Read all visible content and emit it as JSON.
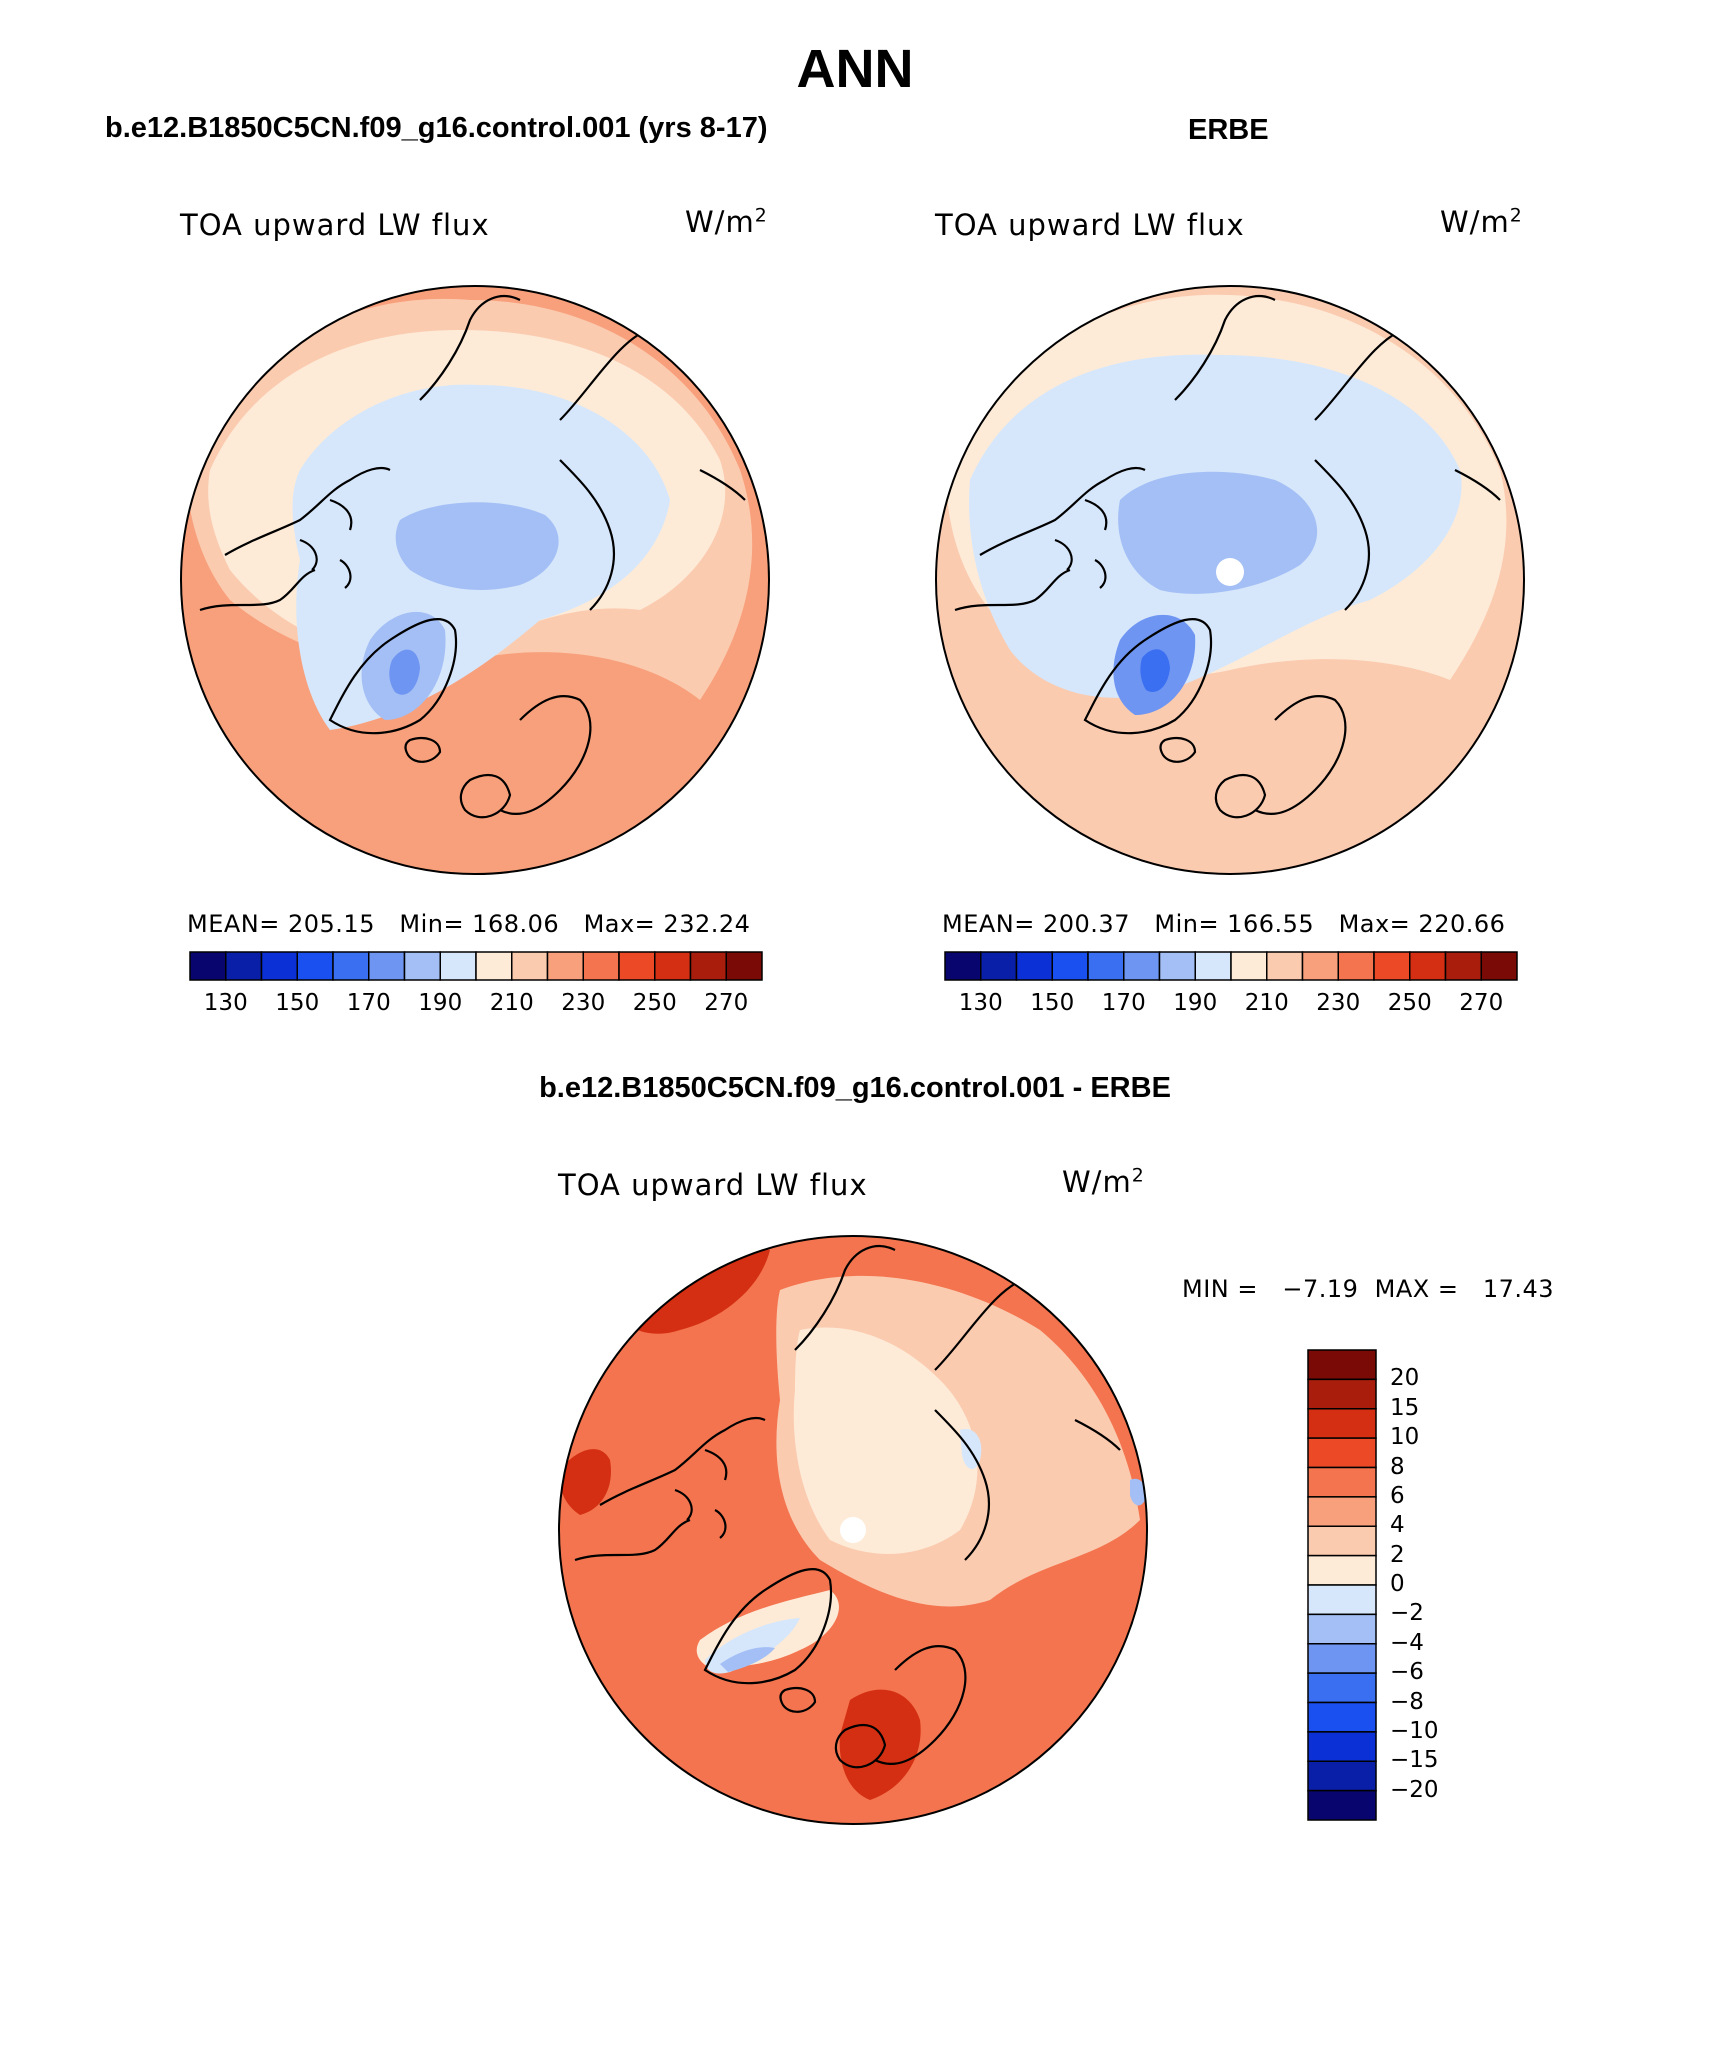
{
  "title": "ANN",
  "panels": {
    "model": {
      "case_title": "b.e12.B1850C5CN.f09_g16.control.001 (yrs 8-17)",
      "variable": "TOA upward LW flux",
      "units_base": "W/m",
      "units_exp": "2",
      "mean_label": "MEAN= 205.15",
      "min_label": "Min= 168.06",
      "max_label": "Max= 232.24",
      "mean": 205.15,
      "min": 168.06,
      "max": 232.24
    },
    "obs": {
      "case_title": "ERBE",
      "variable": "TOA upward LW flux",
      "units_base": "W/m",
      "units_exp": "2",
      "mean_label": "MEAN= 200.37",
      "min_label": "Min= 166.55",
      "max_label": "Max= 220.66",
      "mean": 200.37,
      "min": 166.55,
      "max": 220.66
    },
    "diff": {
      "case_title": "b.e12.B1850C5CN.f09_g16.control.001 - ERBE",
      "variable": "TOA upward LW flux",
      "units_base": "W/m",
      "units_exp": "2",
      "minmax_label": "MIN =   −7.19  MAX =   17.43",
      "min": -7.19,
      "max": 17.43
    }
  },
  "colorbar_main": {
    "colors": [
      "#08066e",
      "#0a1fa8",
      "#0b30d6",
      "#1a4ff0",
      "#3a6ff2",
      "#6f95f2",
      "#a3bff5",
      "#d6e7fb",
      "#fdebd8",
      "#fbcbb0",
      "#f8a07c",
      "#f3744e",
      "#ec4a26",
      "#d42f12",
      "#a81d0c",
      "#7a0a06"
    ],
    "tick_labels": [
      "130",
      "150",
      "170",
      "190",
      "210",
      "230",
      "250",
      "270"
    ]
  },
  "colorbar_diff": {
    "colors": [
      "#7a0a06",
      "#a81d0c",
      "#d42f12",
      "#ec4a26",
      "#f3744e",
      "#f8a07c",
      "#fbcbb0",
      "#fdebd8",
      "#d6e7fb",
      "#a3bff5",
      "#6f95f2",
      "#3a6ff2",
      "#1a4ff0",
      "#0b30d6",
      "#0a1fa8",
      "#08066e"
    ],
    "tick_labels": [
      "20",
      "15",
      "10",
      "8",
      "6",
      "4",
      "2",
      "0",
      "−2",
      "−4",
      "−6",
      "−8",
      "−10",
      "−15",
      "−20"
    ]
  }
}
